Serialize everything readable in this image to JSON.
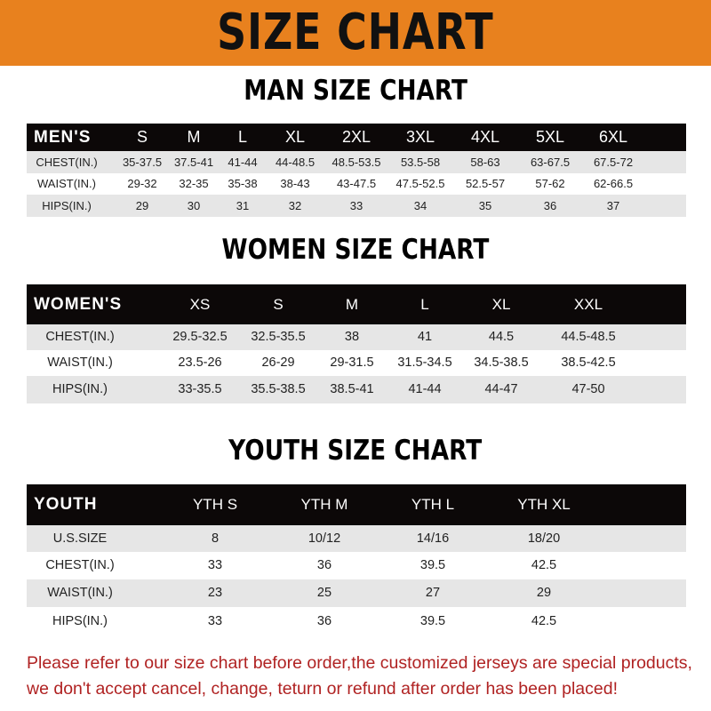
{
  "banner_title": "SIZE CHART",
  "colors": {
    "banner": "#e8811e",
    "header_row": "#0c0808",
    "note_text": "#b02222"
  },
  "men": {
    "title": "MAN SIZE CHART",
    "header": [
      "MEN'S",
      "S",
      "M",
      "L",
      "XL",
      "2XL",
      "3XL",
      "4XL",
      "5XL",
      "6XL"
    ],
    "rows": [
      [
        "CHEST(IN.)",
        "35-37.5",
        "37.5-41",
        "41-44",
        "44-48.5",
        "48.5-53.5",
        "53.5-58",
        "58-63",
        "63-67.5",
        "67.5-72"
      ],
      [
        "WAIST(IN.)",
        "29-32",
        "32-35",
        "35-38",
        "38-43",
        "43-47.5",
        "47.5-52.5",
        "52.5-57",
        "57-62",
        "62-66.5"
      ],
      [
        "HIPS(IN.)",
        "29",
        "30",
        "31",
        "32",
        "33",
        "34",
        "35",
        "36",
        "37"
      ]
    ]
  },
  "women": {
    "title": "WOMEN SIZE CHART",
    "header": [
      "WOMEN'S",
      "XS",
      "S",
      "M",
      "L",
      "XL",
      "XXL"
    ],
    "rows": [
      [
        "CHEST(IN.)",
        "29.5-32.5",
        "32.5-35.5",
        "38",
        "41",
        "44.5",
        "44.5-48.5"
      ],
      [
        "WAIST(IN.)",
        "23.5-26",
        "26-29",
        "29-31.5",
        "31.5-34.5",
        "34.5-38.5",
        "38.5-42.5"
      ],
      [
        "HIPS(IN.)",
        "33-35.5",
        "35.5-38.5",
        "38.5-41",
        "41-44",
        "44-47",
        "47-50"
      ]
    ]
  },
  "youth": {
    "title": "YOUTH SIZE CHART",
    "header": [
      "YOUTH",
      "YTH S",
      "YTH M",
      "YTH L",
      "YTH XL"
    ],
    "rows": [
      [
        "U.S.SIZE",
        "8",
        "10/12",
        "14/16",
        "18/20"
      ],
      [
        "CHEST(IN.)",
        "33",
        "36",
        "39.5",
        "42.5"
      ],
      [
        "WAIST(IN.)",
        "23",
        "25",
        "27",
        "29"
      ],
      [
        "HIPS(IN.)",
        "33",
        "36",
        "39.5",
        "42.5"
      ]
    ]
  },
  "note": {
    "line1": "Please refer to our size chart before order,the customized jerseys are special products,",
    "line2": "we don't accept cancel, change, teturn or refund after order has been placed!"
  }
}
